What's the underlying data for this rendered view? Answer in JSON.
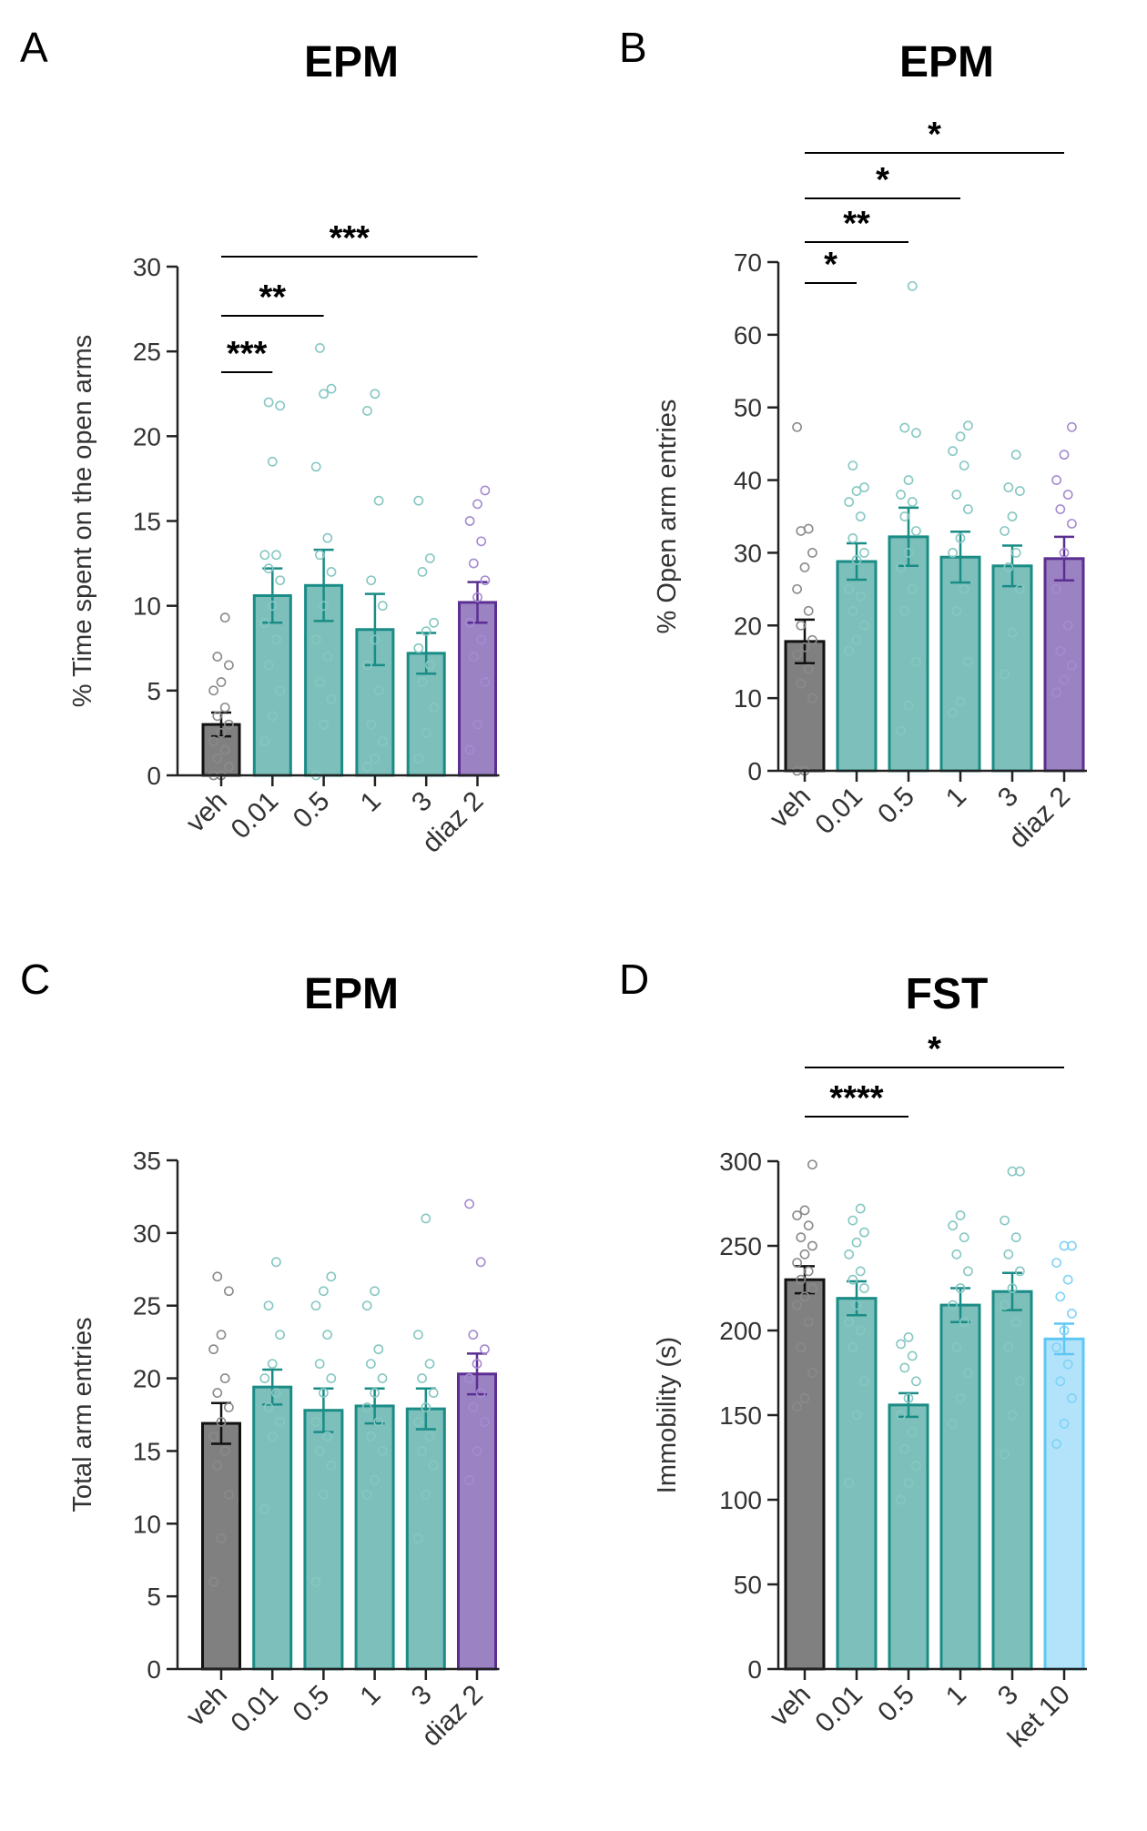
{
  "chart_data": [
    {
      "panel": "A",
      "type": "bar",
      "title": "EPM",
      "ylabel": "% Time spent on the open arms",
      "xlabel": "",
      "ylim": [
        0,
        30
      ],
      "yticks": [
        0,
        5,
        10,
        15,
        20,
        25,
        30
      ],
      "categories": [
        "veh",
        "0.01",
        "0.5",
        "1",
        "3",
        "diaz 2"
      ],
      "values": [
        3.0,
        10.6,
        11.2,
        8.6,
        7.2,
        10.2
      ],
      "sem": [
        0.7,
        1.6,
        2.1,
        2.1,
        1.2,
        1.2
      ],
      "points": [
        [
          0,
          0,
          0.5,
          1,
          1.5,
          2,
          2.5,
          3,
          3.5,
          4,
          5,
          5.5,
          6.5,
          7,
          9.3
        ],
        [
          2,
          3.5,
          5,
          6.5,
          8,
          9,
          10,
          11.5,
          12.2,
          13,
          13,
          18.5,
          21.8,
          22
        ],
        [
          0,
          3,
          4.5,
          5.5,
          7,
          8,
          10,
          12,
          13,
          14,
          18.2,
          22.5,
          22.8,
          25.2
        ],
        [
          0.5,
          1,
          2,
          3,
          5,
          6.5,
          8,
          10,
          11.5,
          16.2,
          21.5,
          22.5
        ],
        [
          1,
          2.5,
          4,
          5.5,
          6.5,
          7.5,
          8.5,
          9,
          12,
          12.8,
          16.2
        ],
        [
          1.5,
          3,
          5.5,
          7,
          8,
          9,
          10.5,
          11.5,
          12.5,
          13.8,
          15,
          16,
          16.8
        ]
      ],
      "significance": [
        {
          "from": 0,
          "to": 1,
          "label": "***"
        },
        {
          "from": 0,
          "to": 2,
          "label": "**"
        },
        {
          "from": 0,
          "to": 5,
          "label": "***"
        }
      ]
    },
    {
      "panel": "B",
      "type": "bar",
      "title": "EPM",
      "ylabel": "% Open arm entries",
      "xlabel": "",
      "ylim": [
        0,
        70
      ],
      "yticks": [
        0,
        10,
        20,
        30,
        40,
        50,
        60,
        70
      ],
      "categories": [
        "veh",
        "0.01",
        "0.5",
        "1",
        "3",
        "diaz 2"
      ],
      "values": [
        17.8,
        28.8,
        32.2,
        29.4,
        28.2,
        29.2
      ],
      "sem": [
        3.0,
        2.5,
        4.0,
        3.5,
        2.8,
        3.0
      ],
      "points": [
        [
          0,
          0,
          10,
          12,
          14,
          16,
          17,
          18,
          20,
          22,
          25,
          28,
          30,
          33,
          33.3,
          47.3
        ],
        [
          16.5,
          18,
          20,
          22,
          24,
          25,
          29,
          30,
          32,
          35,
          37,
          38.5,
          39,
          42
        ],
        [
          5.5,
          9,
          15,
          22,
          25,
          28,
          30,
          33,
          35,
          37,
          38,
          40,
          46.5,
          47.2,
          66.7
        ],
        [
          8,
          9.5,
          15,
          22,
          25,
          30,
          32,
          36,
          38,
          42,
          44,
          46,
          47.5
        ],
        [
          13.3,
          19,
          25,
          28,
          30,
          33,
          35,
          38.5,
          39,
          43.5
        ],
        [
          10.8,
          12.5,
          14.5,
          16.5,
          20,
          25,
          30,
          34,
          36,
          38,
          40,
          43.5,
          47.3
        ]
      ],
      "significance": [
        {
          "from": 0,
          "to": 1,
          "label": "*"
        },
        {
          "from": 0,
          "to": 2,
          "label": "**"
        },
        {
          "from": 0,
          "to": 3,
          "label": "*"
        },
        {
          "from": 0,
          "to": 5,
          "label": "*"
        }
      ]
    },
    {
      "panel": "C",
      "type": "bar",
      "title": "EPM",
      "ylabel": "Total arm entries",
      "xlabel": "",
      "ylim": [
        0,
        35
      ],
      "yticks": [
        0,
        5,
        10,
        15,
        20,
        25,
        30,
        35
      ],
      "categories": [
        "veh",
        "0.01",
        "0.5",
        "1",
        "3",
        "diaz 2"
      ],
      "values": [
        16.9,
        19.4,
        17.8,
        18.1,
        17.9,
        20.3
      ],
      "sem": [
        1.4,
        1.2,
        1.5,
        1.2,
        1.4,
        1.4
      ],
      "points": [
        [
          6,
          9,
          12,
          14,
          15,
          16,
          17,
          18,
          19,
          20,
          22,
          23,
          26,
          27
        ],
        [
          11,
          16,
          17,
          18,
          19,
          20,
          21,
          23,
          25,
          28
        ],
        [
          6,
          12,
          14,
          15,
          16,
          17,
          19,
          20,
          21,
          23,
          25,
          26,
          27
        ],
        [
          12,
          13,
          15,
          16,
          17,
          18,
          19,
          20,
          21,
          22,
          25,
          26
        ],
        [
          9,
          12,
          14,
          15,
          16,
          17,
          18,
          19,
          20,
          21,
          23,
          31
        ],
        [
          13,
          15,
          17,
          18,
          19,
          20,
          21,
          22,
          23,
          28,
          32
        ]
      ],
      "significance": []
    },
    {
      "panel": "D",
      "type": "bar",
      "title": "FST",
      "ylabel": "Immobility (s)",
      "xlabel": "",
      "ylim": [
        0,
        300
      ],
      "yticks": [
        0,
        50,
        100,
        150,
        200,
        250,
        300
      ],
      "categories": [
        "veh",
        "0.01",
        "0.5",
        "1",
        "3",
        "ket 10"
      ],
      "values": [
        230,
        219,
        156,
        215,
        223,
        195
      ],
      "sem": [
        8,
        10,
        7,
        10,
        11,
        9
      ],
      "points": [
        [
          155,
          160,
          175,
          190,
          205,
          215,
          220,
          225,
          230,
          235,
          240,
          245,
          250,
          255,
          262,
          268,
          271,
          298
        ],
        [
          110,
          150,
          170,
          190,
          200,
          205,
          215,
          225,
          230,
          235,
          245,
          252,
          258,
          265,
          272
        ],
        [
          100,
          110,
          120,
          130,
          140,
          150,
          160,
          170,
          178,
          185,
          192,
          196
        ],
        [
          145,
          160,
          175,
          190,
          205,
          215,
          225,
          235,
          245,
          255,
          262,
          268
        ],
        [
          127,
          150,
          170,
          190,
          205,
          215,
          225,
          235,
          245,
          255,
          265,
          294,
          294
        ],
        [
          133,
          145,
          160,
          170,
          180,
          190,
          200,
          210,
          220,
          230,
          240,
          250,
          250
        ]
      ],
      "significance": [
        {
          "from": 0,
          "to": 2,
          "label": "****"
        },
        {
          "from": 0,
          "to": 5,
          "label": "*"
        }
      ]
    }
  ],
  "style": {
    "colors": {
      "veh": "#808080",
      "veh_edge": "#111111",
      "veh_points": "#8a8a8a",
      "teal": "#7dbfbb",
      "teal_edge": "#1a8c86",
      "teal_points": "#86c7c2",
      "purple": "#9b82c3",
      "purple_edge": "#5b2f91",
      "purple_points": "#a58bd0",
      "light_blue": "#b3e3fb",
      "light_blue_edge": "#5fc7f3",
      "light_blue_points": "#7fd3f5",
      "axis": "#222222",
      "sig_line": "#000000"
    }
  }
}
